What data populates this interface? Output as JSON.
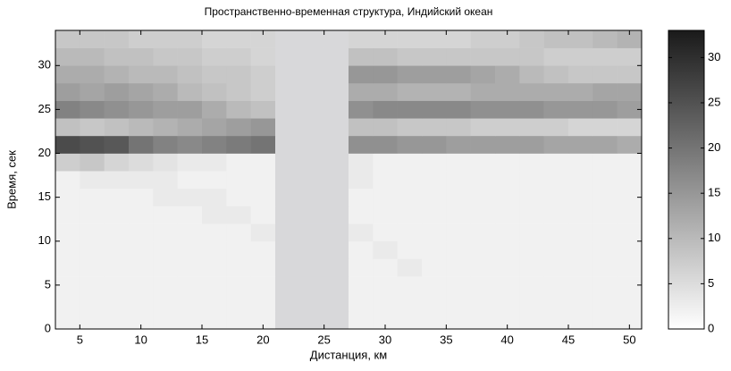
{
  "chart_data": {
    "type": "heatmap",
    "title": "Пространственно-временная структура, Индийский океан",
    "x_label": "Дистанция, км",
    "y_label": "Время, сек",
    "x": [
      4,
      6,
      8,
      10,
      12,
      14,
      16,
      18,
      20,
      22,
      24,
      26,
      28,
      30,
      32,
      34,
      36,
      38,
      40,
      42,
      44,
      46,
      48,
      50
    ],
    "y": [
      1,
      3,
      5,
      7,
      9,
      11,
      13,
      15,
      17,
      19,
      21,
      23,
      25,
      27,
      29,
      31,
      33
    ],
    "z": [
      [
        2,
        2,
        2,
        2,
        2,
        2,
        2,
        2,
        2,
        null,
        null,
        null,
        2,
        2,
        2,
        2,
        2,
        2,
        2,
        2,
        2,
        2,
        2,
        2
      ],
      [
        2,
        2,
        2,
        2,
        2,
        2,
        2,
        2,
        2,
        null,
        null,
        null,
        2,
        2,
        2,
        2,
        2,
        2,
        2,
        2,
        2,
        2,
        2,
        2
      ],
      [
        2,
        2,
        2,
        2,
        2,
        2,
        2,
        2,
        2,
        null,
        null,
        null,
        2,
        2,
        2,
        2,
        2,
        2,
        2,
        2,
        2,
        2,
        2,
        2
      ],
      [
        2,
        2,
        2,
        2,
        2,
        2,
        2,
        2,
        2,
        null,
        null,
        null,
        2,
        2,
        3,
        2,
        2,
        2,
        2,
        2,
        2,
        2,
        2,
        2
      ],
      [
        2,
        2,
        2,
        2,
        2,
        2,
        2,
        2,
        2,
        null,
        null,
        null,
        2,
        3,
        2,
        2,
        2,
        2,
        2,
        2,
        2,
        2,
        2,
        2
      ],
      [
        2,
        2,
        2,
        2,
        2,
        2,
        2,
        2,
        3,
        null,
        null,
        null,
        3,
        2,
        2,
        2,
        2,
        2,
        2,
        2,
        2,
        2,
        2,
        2
      ],
      [
        2,
        2,
        2,
        2,
        2,
        2,
        3,
        3,
        2,
        null,
        null,
        null,
        2,
        2,
        2,
        2,
        2,
        2,
        2,
        2,
        2,
        2,
        2,
        2
      ],
      [
        2,
        2,
        2,
        2,
        3,
        3,
        3,
        2,
        2,
        null,
        null,
        null,
        2,
        2,
        2,
        2,
        2,
        2,
        2,
        2,
        2,
        2,
        2,
        2
      ],
      [
        2,
        3,
        3,
        3,
        3,
        2,
        2,
        2,
        2,
        null,
        null,
        null,
        3,
        2,
        2,
        2,
        2,
        2,
        2,
        2,
        2,
        2,
        2,
        2
      ],
      [
        7,
        8,
        6,
        5,
        4,
        3,
        3,
        2,
        2,
        null,
        null,
        null,
        3,
        2,
        2,
        2,
        2,
        2,
        2,
        2,
        2,
        2,
        2,
        2
      ],
      [
        26,
        25,
        24,
        20,
        18,
        17,
        18,
        19,
        20,
        null,
        null,
        null,
        16,
        16,
        15,
        15,
        14,
        14,
        14,
        14,
        13,
        13,
        13,
        12
      ],
      [
        9,
        8,
        9,
        10,
        11,
        12,
        13,
        14,
        15,
        null,
        null,
        null,
        9,
        9,
        8,
        8,
        8,
        7,
        7,
        7,
        7,
        6,
        6,
        6
      ],
      [
        18,
        17,
        16,
        15,
        14,
        14,
        12,
        10,
        9,
        null,
        null,
        null,
        16,
        17,
        17,
        17,
        17,
        16,
        16,
        16,
        15,
        15,
        15,
        14
      ],
      [
        14,
        13,
        14,
        13,
        12,
        10,
        9,
        8,
        7,
        null,
        null,
        null,
        12,
        12,
        11,
        11,
        11,
        12,
        12,
        12,
        12,
        12,
        13,
        13
      ],
      [
        12,
        12,
        11,
        10,
        10,
        9,
        8,
        8,
        7,
        null,
        null,
        null,
        15,
        15,
        14,
        14,
        14,
        13,
        12,
        10,
        9,
        8,
        8,
        8
      ],
      [
        10,
        10,
        9,
        9,
        8,
        8,
        7,
        7,
        6,
        null,
        null,
        null,
        9,
        9,
        8,
        8,
        8,
        8,
        8,
        8,
        7,
        7,
        7,
        7
      ],
      [
        8,
        8,
        8,
        7,
        7,
        7,
        6,
        6,
        6,
        null,
        null,
        null,
        6,
        6,
        6,
        6,
        6,
        7,
        7,
        8,
        9,
        9,
        10,
        11
      ]
    ],
    "xlim": [
      3,
      51
    ],
    "ylim": [
      0,
      34
    ],
    "zlim": [
      0,
      33
    ],
    "xticks": [
      5,
      10,
      15,
      20,
      25,
      30,
      35,
      40,
      45,
      50
    ],
    "yticks": [
      0,
      5,
      10,
      15,
      20,
      25,
      30
    ],
    "zticks": [
      0,
      5,
      10,
      15,
      20,
      25,
      30
    ],
    "colormap": [
      "#ffffff",
      "#1a1a1a"
    ],
    "missing_color": "#d8d8da"
  }
}
